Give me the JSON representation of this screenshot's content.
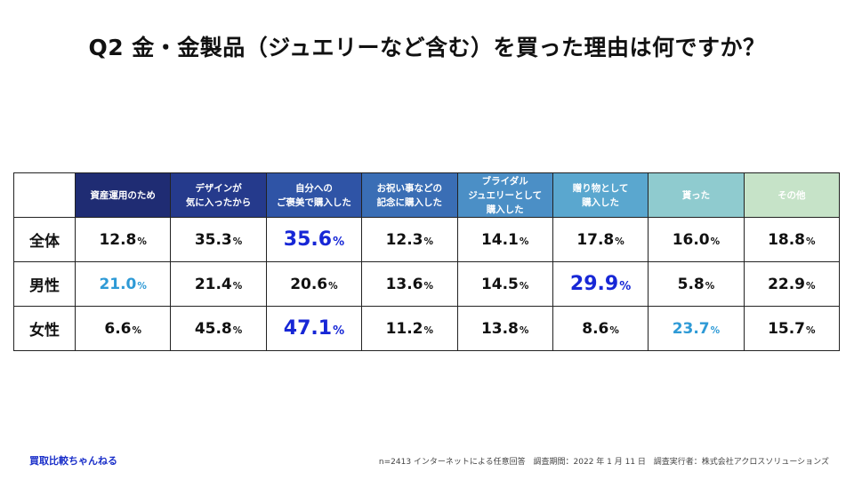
{
  "title": "Q2 金・金製品（ジュエリーなど含む）を買った理由は何ですか？",
  "colors": {
    "header": [
      "#1f2c73",
      "#253a8c",
      "#2f54a6",
      "#3a6eb5",
      "#4b8fc6",
      "#5aa7cf",
      "#8fcbcf",
      "#c6e3c8"
    ],
    "highlight_dark": "#1727d6",
    "highlight_light": "#2e9ad6",
    "normal": "#111111"
  },
  "chart_data": {
    "type": "table",
    "title": "Q2 金・金製品（ジュエリーなど含む）を買った理由は何ですか？",
    "unit": "%",
    "columns": [
      [
        "資産運用のため"
      ],
      [
        "デザインが",
        "気に入ったから"
      ],
      [
        "自分への",
        "ご褒美で購入した"
      ],
      [
        "お祝い事などの",
        "記念に購入した"
      ],
      [
        "ブライダル",
        "ジュエリーとして",
        "購入した"
      ],
      [
        "贈り物として",
        "購入した"
      ],
      [
        "貰った"
      ],
      [
        "その他"
      ]
    ],
    "rows": [
      {
        "label": "全体",
        "values": [
          "12.8",
          "35.3",
          "35.6",
          "12.3",
          "14.1",
          "17.8",
          "16.0",
          "18.8"
        ],
        "highlight": [
          "",
          "",
          "dark",
          "",
          "",
          "",
          "",
          ""
        ]
      },
      {
        "label": "男性",
        "values": [
          "21.0",
          "21.4",
          "20.6",
          "13.6",
          "14.5",
          "29.9",
          "5.8",
          "22.9"
        ],
        "highlight": [
          "light",
          "",
          "",
          "",
          "",
          "dark",
          "",
          ""
        ]
      },
      {
        "label": "女性",
        "values": [
          "6.6",
          "45.8",
          "47.1",
          "11.2",
          "13.8",
          "8.6",
          "23.7",
          "15.7"
        ],
        "highlight": [
          "",
          "",
          "dark",
          "",
          "",
          "",
          "light",
          ""
        ]
      }
    ]
  },
  "footer": {
    "brand": "買取比較ちゃんねる",
    "sample": "n=2413 インターネットによる任意回答",
    "period": "調査期間：2022 年 1 月 11 日",
    "agency": "調査実行者：株式会社アクロスソリューションズ"
  }
}
